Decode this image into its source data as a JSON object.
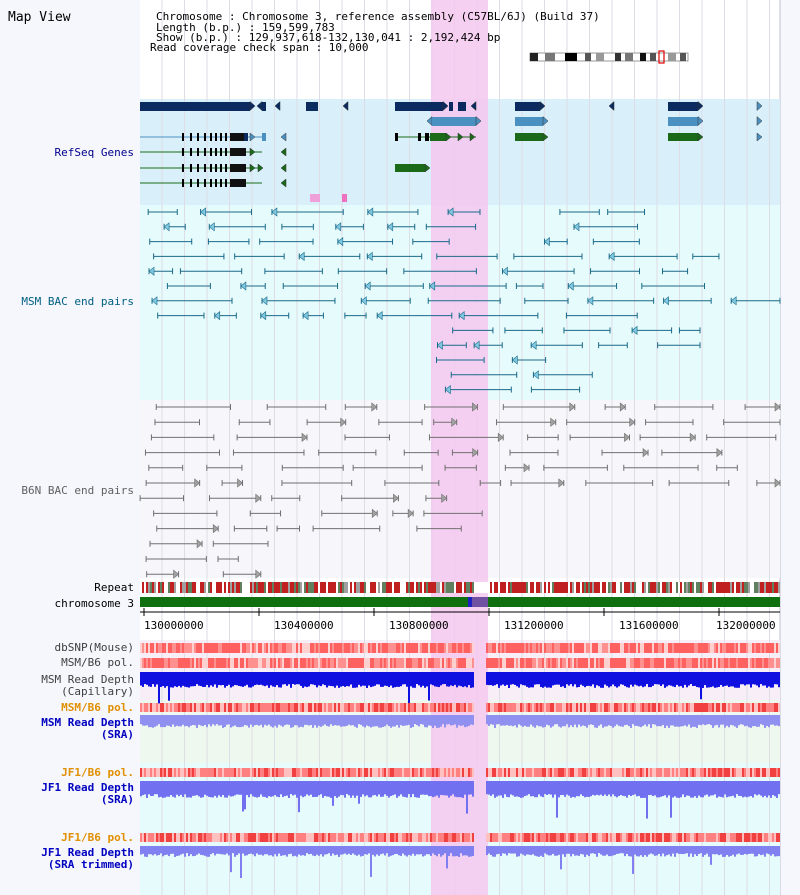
{
  "title": "Map View",
  "header": {
    "chromosome": "Chromosome     : Chromosome 3, reference assembly (C57BL/6J) (Build 37)",
    "length": "Length (b.p.) : 159,599,783",
    "show": "  Show (b.p.) : 129,937,618-132,130,041 : 2,192,424 bp",
    "coverage": "Read coverage check span : 10,000"
  },
  "tracks": {
    "refseq": {
      "label": "RefSeq Genes",
      "color": "#00008b"
    },
    "msm_bac": {
      "label": "MSM BAC end pairs",
      "color": "#006080"
    },
    "b6n_bac": {
      "label": "B6N BAC end pairs",
      "color": "#606060"
    },
    "repeat": {
      "label": "Repeat"
    },
    "chromosome": {
      "label": "chromosome 3"
    },
    "dbsnp": {
      "label": "dbSNP(Mouse)"
    },
    "msm_b6_pol": {
      "label": "MSM/B6 pol."
    },
    "msm_read_cap": {
      "label1": "MSM Read Depth",
      "label2": "(Capillary)"
    },
    "msm_b6_pol2": {
      "label": "MSM/B6 pol.",
      "color": "#e09000"
    },
    "msm_read_sra": {
      "label1": "MSM Read Depth",
      "label2": "(SRA)",
      "color": "#0000c0"
    },
    "jf1_b6_pol": {
      "label": "JF1/B6 pol.",
      "color": "#e09000"
    },
    "jf1_read_sra": {
      "label1": "JF1 Read Depth",
      "label2": "(SRA)",
      "color": "#0000c0"
    },
    "jf1_b6_pol2": {
      "label": "JF1/B6 pol.",
      "color": "#e09000"
    },
    "jf1_read_trim": {
      "label1": "JF1 Read Depth",
      "label2": "(SRA trimmed)",
      "color": "#0000c0"
    }
  },
  "axis": {
    "ticks": [
      "130000000",
      "130400000",
      "130800000",
      "131200000",
      "131600000",
      "132000000"
    ]
  },
  "colors": {
    "highlight": "#f4c8ee",
    "refseq_bg": "#d9f0fa",
    "msm_bg": "#e6fbfb",
    "b6n_bg": "#f6f6fb",
    "chrom_green": "#107010"
  }
}
